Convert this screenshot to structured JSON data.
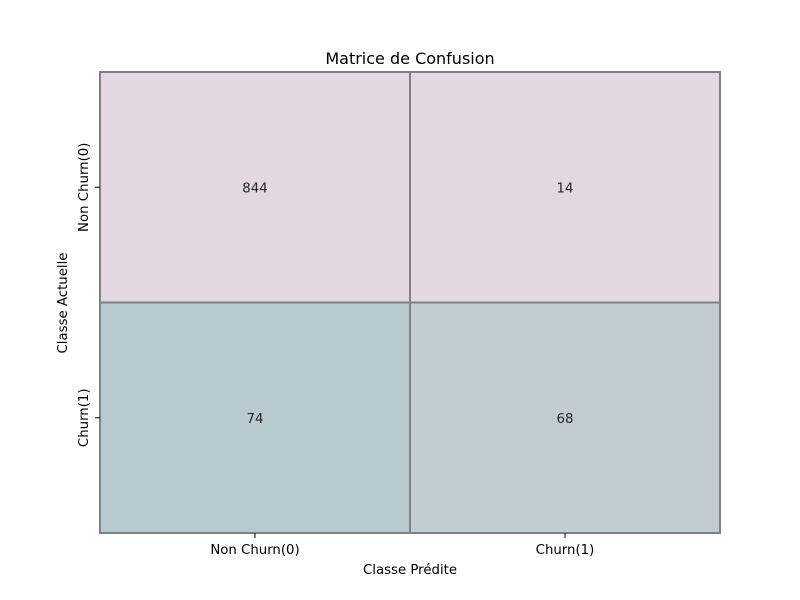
{
  "chart_data": {
    "type": "heatmap",
    "title": "Matrice de Confusion",
    "xlabel": "Classe Prédite",
    "ylabel": "Classe Actuelle",
    "x_categories": [
      "Non Churn(0)",
      "Churn(1)"
    ],
    "y_categories": [
      "Non Churn(0)",
      "Churn(1)"
    ],
    "values": [
      [
        844,
        14
      ],
      [
        74,
        68
      ]
    ],
    "cell_colors": [
      [
        "#e3d8e1",
        "#e3d8e1"
      ],
      [
        "#b9c9d0",
        "#c1cdd3"
      ]
    ],
    "grid_color": "#808080"
  }
}
